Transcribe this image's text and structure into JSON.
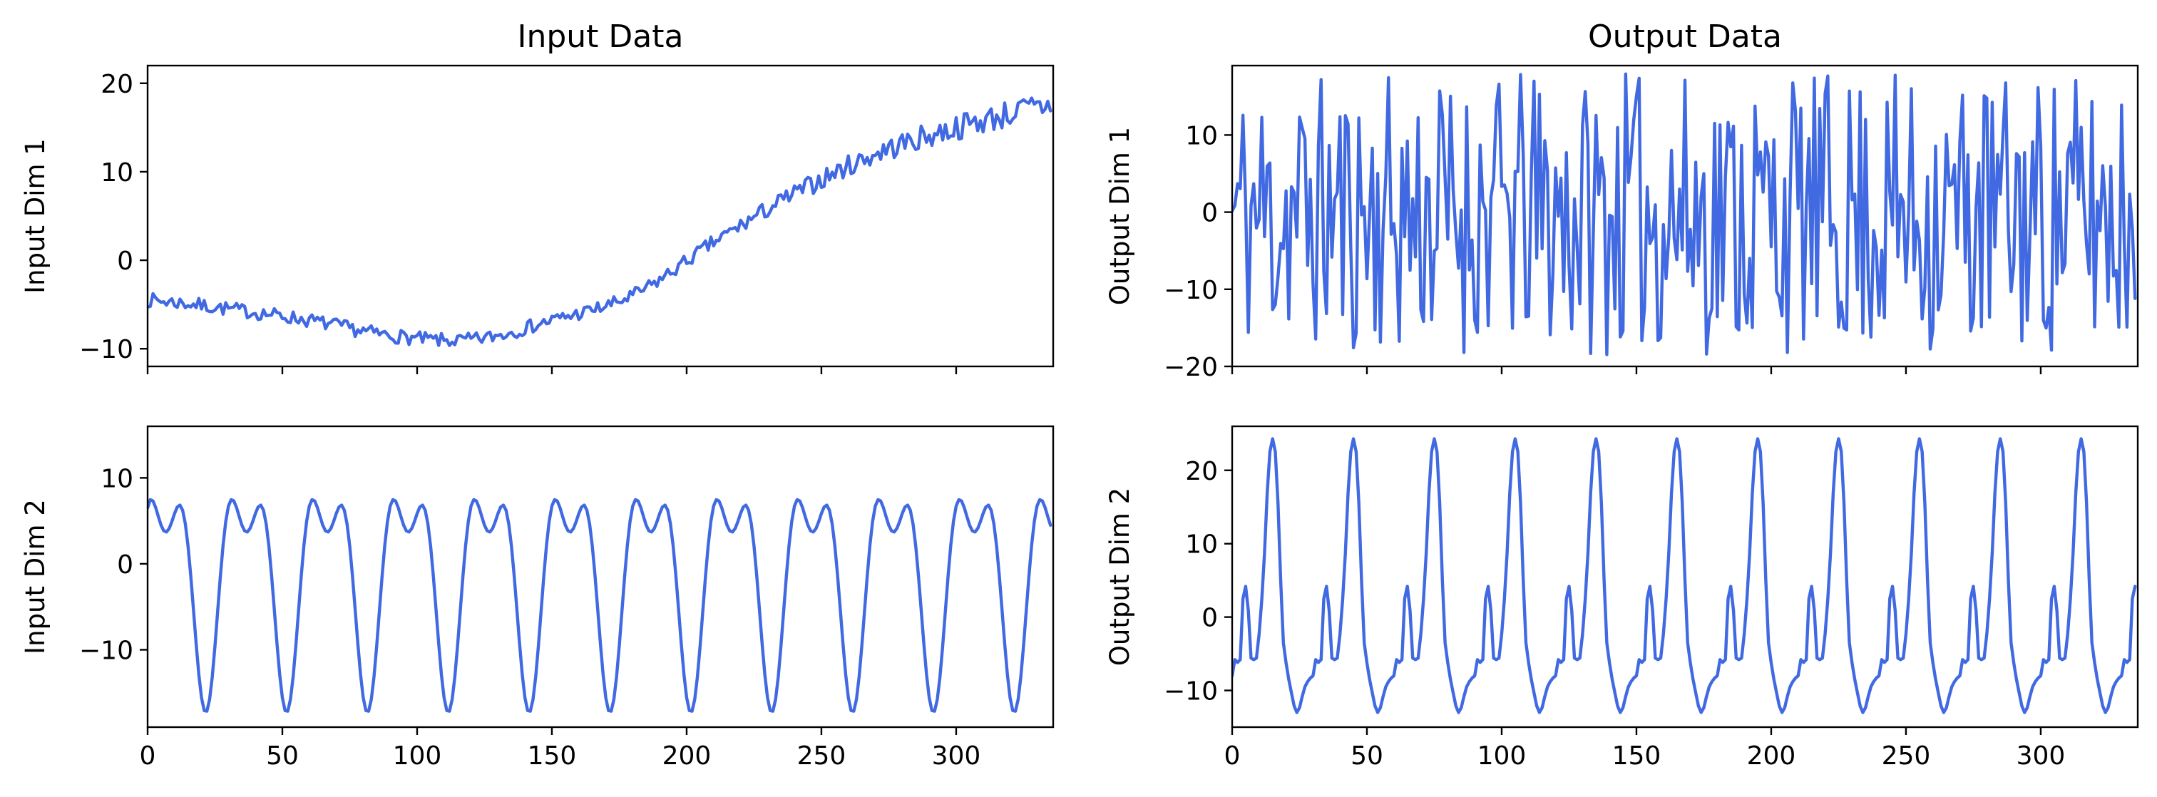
{
  "figure": {
    "column_titles": [
      "Input Data",
      "Output Data"
    ],
    "line_color": "#4169E1"
  },
  "chart_data": [
    {
      "id": "input-dim-1",
      "type": "line",
      "title": "Input Data",
      "xlabel": "",
      "ylabel": "Input Dim 1",
      "xlim": [
        0,
        336
      ],
      "ylim": [
        -12,
        22
      ],
      "xticks": [
        0,
        50,
        100,
        150,
        200,
        250,
        300
      ],
      "yticks": [
        -10,
        0,
        10,
        20
      ],
      "show_xtick_labels": false,
      "grid": false,
      "generator": {
        "kind": "trend-noisy",
        "n": 336,
        "noise": 0.8,
        "seed": 7
      },
      "series": [
        {
          "name": "",
          "keypoints": [
            [
              0,
              -4.5
            ],
            [
              30,
              -5.5
            ],
            [
              60,
              -6.8
            ],
            [
              90,
              -8.5
            ],
            [
              120,
              -9.0
            ],
            [
              150,
              -6.8
            ],
            [
              180,
              -4.0
            ],
            [
              210,
              2.0
            ],
            [
              240,
              7.5
            ],
            [
              270,
              12.0
            ],
            [
              300,
              15.0
            ],
            [
              336,
              17.5
            ]
          ]
        }
      ]
    },
    {
      "id": "output-dim-1",
      "type": "line",
      "title": "Output Data",
      "xlabel": "",
      "ylabel": "Output Dim 1",
      "xlim": [
        0,
        336
      ],
      "ylim": [
        -20,
        19
      ],
      "xticks": [
        0,
        50,
        100,
        150,
        200,
        250,
        300
      ],
      "yticks": [
        -20,
        -10,
        0,
        10
      ],
      "show_xtick_labels": false,
      "grid": false,
      "generator": {
        "kind": "random",
        "n": 336,
        "min": -18.5,
        "max": 18,
        "seed": 11
      },
      "series": [
        {
          "name": ""
        }
      ]
    },
    {
      "id": "input-dim-2",
      "type": "line",
      "title": "",
      "xlabel": "",
      "ylabel": "Input Dim 2",
      "xlim": [
        0,
        336
      ],
      "ylim": [
        -19,
        16
      ],
      "xticks": [
        0,
        50,
        100,
        150,
        200,
        250,
        300
      ],
      "yticks": [
        -10,
        0,
        10
      ],
      "show_xtick_labels": true,
      "grid": false,
      "generator": {
        "kind": "periodic",
        "n": 336,
        "period": 30,
        "phase": 2.5,
        "amplitude": 15.5,
        "offset": -1.25,
        "keypoints_one_period": [
          [
            0,
            -4.0
          ],
          [
            3,
            -1.0
          ],
          [
            6.5,
            3.6
          ],
          [
            10,
            -1.0
          ],
          [
            13,
            -10.0
          ],
          [
            17.5,
            -16.8
          ],
          [
            22,
            -10.0
          ],
          [
            25,
            -1.0
          ],
          [
            27.5,
            5.0
          ],
          [
            29.5,
            13.0
          ],
          [
            30,
            -4.0
          ]
        ]
      },
      "series": [
        {
          "name": ""
        }
      ]
    },
    {
      "id": "output-dim-2",
      "type": "line",
      "title": "",
      "xlabel": "",
      "ylabel": "Output Dim 2",
      "xlim": [
        0,
        336
      ],
      "ylim": [
        -15,
        26
      ],
      "xticks": [
        0,
        50,
        100,
        150,
        200,
        250,
        300
      ],
      "yticks": [
        -10,
        0,
        10,
        20
      ],
      "show_xtick_labels": true,
      "grid": false,
      "generator": {
        "kind": "periodic",
        "n": 336,
        "period": 30,
        "phase": 0
      },
      "series": [
        {
          "name": "",
          "keypoints_one_period": [
            [
              0,
              -8
            ],
            [
              1,
              -5.8
            ],
            [
              3,
              -5.8
            ],
            [
              4,
              2.5
            ],
            [
              5.5,
              3.5
            ],
            [
              7,
              -5.6
            ],
            [
              8,
              -5.8
            ],
            [
              9,
              -5.6
            ],
            [
              11.5,
              5
            ],
            [
              13.5,
              20
            ],
            [
              15,
              24.3
            ],
            [
              16.5,
              20
            ],
            [
              18,
              5
            ],
            [
              19,
              -3.5
            ],
            [
              21,
              -8.5
            ],
            [
              24,
              -13.0
            ],
            [
              27,
              -9.5
            ],
            [
              30,
              -8
            ]
          ]
        }
      ]
    }
  ]
}
